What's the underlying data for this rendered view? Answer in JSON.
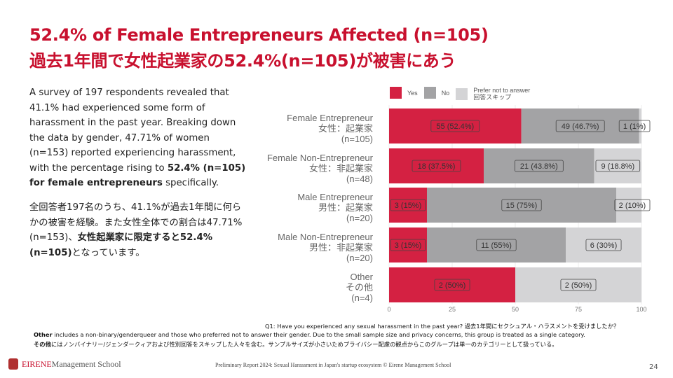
{
  "title_en": "52.4% of Female Entrepreneurs Affected (n=105)",
  "title_ja": "過去1年間で女性起業家の52.4%(n=105)が被害にあう",
  "para_en": {
    "a": "A survey of 197 respondents revealed that 41.1% had experienced some form of harassment in the past year. Breaking down the data by gender, 47.71% of women (n=153) reported experiencing harassment, with the percentage rising to ",
    "b": "52.4% (n=105) for female entrepreneurs",
    "c": " specifically."
  },
  "para_ja": {
    "a": "全回答者197名のうち、41.1%が過去1年間に何らかの被害を経験。また女性全体での割合は47.71%(n=153)、",
    "b": "女性起業家に限定すると52.4%(n=105)",
    "c": "となっています。"
  },
  "chart_data": {
    "type": "bar",
    "stacked": true,
    "orientation": "horizontal",
    "legend": [
      {
        "label": "Yes",
        "color": "#d42142"
      },
      {
        "label": "No",
        "color": "#a3a3a5"
      },
      {
        "label": "Prefer not to answer",
        "label_ja": "回答スキップ",
        "color": "#d4d4d6"
      }
    ],
    "categories": [
      {
        "en": "Female Entrepreneur",
        "ja": "女性：起業家",
        "n": "(n=105)"
      },
      {
        "en": "Female Non-Entrepreneur",
        "ja": "女性：非起業家",
        "n": "(n=48)"
      },
      {
        "en": "Male Entrepreneur",
        "ja": "男性：起業家",
        "n": "(n=20)"
      },
      {
        "en": "Male Non-Entrepreneur",
        "ja": "男性：非起業家",
        "n": "(n=20)"
      },
      {
        "en": "Other",
        "ja": "その他",
        "n": "(n=4)"
      }
    ],
    "series": [
      {
        "name": "Yes",
        "values": [
          52.4,
          37.5,
          15,
          15,
          50
        ],
        "labels": [
          "55 (52.4%)",
          "18 (37.5%)",
          "3 (15%)",
          "3 (15%)",
          "2 (50%)"
        ]
      },
      {
        "name": "No",
        "values": [
          46.7,
          43.8,
          75,
          55,
          0
        ],
        "labels": [
          "49 (46.7%)",
          "21 (43.8%)",
          "15 (75%)",
          "11 (55%)",
          ""
        ]
      },
      {
        "name": "Prefer not to answer",
        "values": [
          1,
          18.8,
          10,
          30,
          50
        ],
        "labels": [
          "1 (1%)",
          "9 (18.8%)",
          "2 (10%)",
          "6 (30%)",
          "2 (50%)"
        ]
      }
    ],
    "xlim": [
      0,
      100
    ],
    "xticks": [
      0,
      25,
      50,
      75,
      100
    ]
  },
  "footer": {
    "question": "Q1: Have you experienced any sexual harassment in the past year? 過去1年間にセクシュアル・ハラスメントを受けましたか？",
    "note_en_b": "Other",
    "note_en": " includes a non-binary/genderqueer and those who preferred not to answer their gender. Due to the small sample size and privacy concerns, this group is treated as a single category.",
    "note_ja_b": "その他",
    "note_ja": "にはノンバイナリー/ジェンダークィアおよび性別回答をスキップした人々を含む。サンプルサイズが小さいためプライバシー配慮の観点からこのグループは単一のカテゴリーとして扱っている。",
    "logo_a": "EIRENE",
    "logo_b": " Management School",
    "credit": "Preliminary Report 2024: Sexual Harassment in Japan's startup ecosystem © Eirene Management School",
    "page": "24"
  }
}
